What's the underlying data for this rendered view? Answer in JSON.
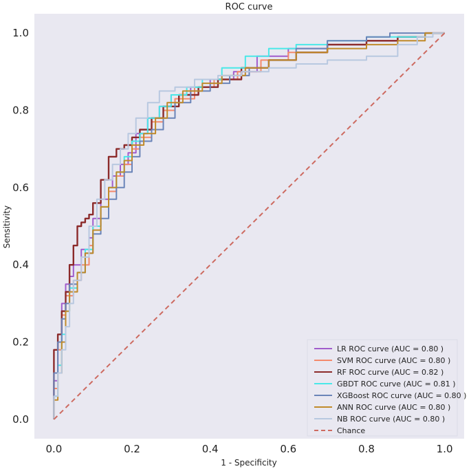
{
  "chart_data": {
    "type": "line",
    "title": "ROC curve",
    "xlabel": "1 - Specificity",
    "ylabel": "Sensitivity",
    "xlim": [
      -0.05,
      1.05
    ],
    "ylim": [
      -0.05,
      1.05
    ],
    "xticks": [
      0.0,
      0.2,
      0.4,
      0.6,
      0.8,
      1.0
    ],
    "yticks": [
      0.0,
      0.2,
      0.4,
      0.6,
      0.8,
      1.0
    ],
    "tick_labels_x": [
      "0.0",
      "0.2",
      "0.4",
      "0.6",
      "0.8",
      "1.0"
    ],
    "tick_labels_y": [
      "0.0",
      "0.2",
      "0.4",
      "0.6",
      "0.8",
      "1.0"
    ],
    "grid": false,
    "legend_position": "lower-right",
    "colors": {
      "background": "#e9e8f1",
      "LR": "#a05ccc",
      "SVM": "#f4896b",
      "RF": "#8b2a2a",
      "GBDT": "#49e8e8",
      "XGBoost": "#6a84b8",
      "ANN": "#c08a2a",
      "NB": "#b8c8e0",
      "Chance": "#cd6a60"
    },
    "series": [
      {
        "key": "LR",
        "name": "LR ROC curve (AUC = 0.80 )",
        "x": [
          0,
          0.01,
          0.02,
          0.03,
          0.04,
          0.05,
          0.07,
          0.09,
          0.1,
          0.12,
          0.14,
          0.15,
          0.17,
          0.19,
          0.21,
          0.24,
          0.27,
          0.3,
          0.35,
          0.4,
          0.46,
          0.52,
          0.6,
          0.7,
          0.8,
          0.88,
          0.95,
          1.0
        ],
        "y": [
          0,
          0.1,
          0.2,
          0.3,
          0.35,
          0.37,
          0.4,
          0.44,
          0.47,
          0.52,
          0.57,
          0.6,
          0.63,
          0.66,
          0.69,
          0.74,
          0.78,
          0.81,
          0.84,
          0.86,
          0.88,
          0.9,
          0.94,
          0.96,
          0.97,
          0.98,
          0.99,
          1.0
        ]
      },
      {
        "key": "SVM",
        "name": "SVM ROC curve (AUC = 0.80 )",
        "x": [
          0,
          0.01,
          0.02,
          0.03,
          0.05,
          0.07,
          0.09,
          0.1,
          0.12,
          0.14,
          0.16,
          0.18,
          0.2,
          0.22,
          0.25,
          0.28,
          0.31,
          0.36,
          0.41,
          0.47,
          0.53,
          0.6,
          0.7,
          0.8,
          0.88,
          0.95,
          1.0
        ],
        "y": [
          0,
          0.08,
          0.18,
          0.27,
          0.32,
          0.36,
          0.4,
          0.45,
          0.5,
          0.55,
          0.59,
          0.63,
          0.66,
          0.7,
          0.73,
          0.77,
          0.8,
          0.83,
          0.86,
          0.88,
          0.9,
          0.93,
          0.95,
          0.97,
          0.98,
          0.99,
          1.0
        ]
      },
      {
        "key": "RF",
        "name": "RF ROC curve (AUC = 0.82 )",
        "x": [
          0,
          0.01,
          0.02,
          0.03,
          0.04,
          0.05,
          0.06,
          0.07,
          0.08,
          0.09,
          0.1,
          0.12,
          0.14,
          0.16,
          0.18,
          0.2,
          0.22,
          0.25,
          0.28,
          0.32,
          0.37,
          0.42,
          0.48,
          0.55,
          0.62,
          0.7,
          0.8,
          0.88,
          0.95,
          1.0
        ],
        "y": [
          0,
          0.18,
          0.22,
          0.28,
          0.33,
          0.4,
          0.45,
          0.5,
          0.51,
          0.52,
          0.53,
          0.56,
          0.62,
          0.68,
          0.7,
          0.71,
          0.73,
          0.75,
          0.78,
          0.81,
          0.84,
          0.86,
          0.88,
          0.91,
          0.93,
          0.95,
          0.97,
          0.98,
          0.99,
          1.0
        ]
      },
      {
        "key": "GBDT",
        "name": "GBDT ROC curve (AUC = 0.81 )",
        "x": [
          0,
          0.01,
          0.02,
          0.03,
          0.04,
          0.06,
          0.08,
          0.1,
          0.12,
          0.14,
          0.16,
          0.18,
          0.2,
          0.22,
          0.24,
          0.27,
          0.3,
          0.34,
          0.38,
          0.43,
          0.49,
          0.55,
          0.62,
          0.7,
          0.8,
          0.88,
          0.95,
          1.0
        ],
        "y": [
          0,
          0.06,
          0.14,
          0.22,
          0.28,
          0.34,
          0.38,
          0.44,
          0.5,
          0.55,
          0.6,
          0.64,
          0.68,
          0.72,
          0.74,
          0.78,
          0.81,
          0.84,
          0.86,
          0.88,
          0.91,
          0.94,
          0.96,
          0.97,
          0.98,
          0.99,
          0.99,
          1.0
        ]
      },
      {
        "key": "XGBoost",
        "name": "XGBoost ROC curve (AUC = 0.80 )",
        "x": [
          0,
          0.01,
          0.02,
          0.03,
          0.04,
          0.06,
          0.08,
          0.1,
          0.12,
          0.14,
          0.16,
          0.18,
          0.2,
          0.22,
          0.25,
          0.28,
          0.31,
          0.35,
          0.4,
          0.45,
          0.5,
          0.55,
          0.62,
          0.7,
          0.8,
          0.86,
          0.9,
          0.95,
          1.0
        ],
        "y": [
          0,
          0.12,
          0.2,
          0.26,
          0.3,
          0.35,
          0.38,
          0.43,
          0.48,
          0.52,
          0.57,
          0.6,
          0.64,
          0.68,
          0.72,
          0.75,
          0.78,
          0.82,
          0.85,
          0.87,
          0.89,
          0.91,
          0.93,
          0.96,
          0.98,
          0.99,
          1.0,
          1.0,
          1.0
        ]
      },
      {
        "key": "ANN",
        "name": "ANN ROC curve (AUC = 0.80 )",
        "x": [
          0,
          0.01,
          0.02,
          0.03,
          0.04,
          0.06,
          0.08,
          0.1,
          0.12,
          0.14,
          0.16,
          0.18,
          0.2,
          0.23,
          0.26,
          0.29,
          0.33,
          0.38,
          0.43,
          0.49,
          0.55,
          0.62,
          0.7,
          0.8,
          0.88,
          0.95,
          1.0
        ],
        "y": [
          0,
          0.05,
          0.12,
          0.2,
          0.28,
          0.33,
          0.38,
          0.43,
          0.49,
          0.55,
          0.6,
          0.64,
          0.67,
          0.71,
          0.74,
          0.78,
          0.82,
          0.85,
          0.87,
          0.89,
          0.91,
          0.93,
          0.95,
          0.96,
          0.97,
          0.98,
          1.0
        ]
      },
      {
        "key": "NB",
        "name": "NB ROC curve (AUC = 0.80 )",
        "x": [
          0,
          0.01,
          0.02,
          0.03,
          0.04,
          0.05,
          0.07,
          0.09,
          0.11,
          0.13,
          0.15,
          0.17,
          0.19,
          0.21,
          0.24,
          0.27,
          0.31,
          0.36,
          0.42,
          0.48,
          0.55,
          0.62,
          0.7,
          0.8,
          0.88,
          0.93,
          0.97,
          1.0
        ],
        "y": [
          0,
          0.06,
          0.12,
          0.18,
          0.24,
          0.3,
          0.36,
          0.42,
          0.5,
          0.57,
          0.62,
          0.66,
          0.7,
          0.74,
          0.78,
          0.82,
          0.85,
          0.86,
          0.88,
          0.89,
          0.9,
          0.91,
          0.92,
          0.93,
          0.94,
          0.97,
          0.99,
          1.0
        ]
      }
    ],
    "chance": {
      "name": "Chance",
      "x": [
        0,
        1
      ],
      "y": [
        0,
        1
      ]
    }
  }
}
